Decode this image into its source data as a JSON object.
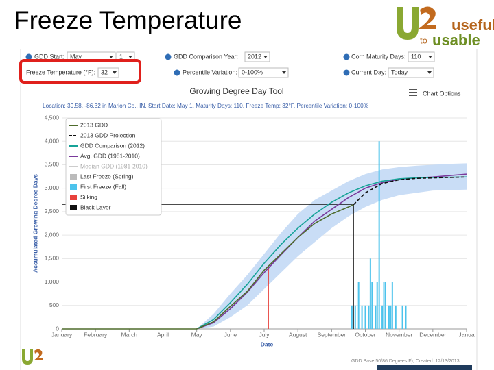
{
  "slide_title": "Freeze Temperature",
  "logo": {
    "word1": "useful",
    "word2": "to",
    "word3": "usable"
  },
  "controls": [
    {
      "label": "GDD Start:",
      "value": "May",
      "value2": "1"
    },
    {
      "label": "GDD Comparison Year:",
      "value": "2012"
    },
    {
      "label": "Corn Maturity Days:",
      "value": "110"
    },
    {
      "label": "Freeze Temperature (°F):",
      "value": "32"
    },
    {
      "label": "Percentile Variation:",
      "value": "0-100%"
    },
    {
      "label": "Current Day:",
      "value": "Today"
    }
  ],
  "chart_options": "Chart Options",
  "footer": "GDD Base 50/86 Degrees F), Created: 12/13/2013",
  "chart_data": {
    "type": "line",
    "title": "Growing Degree Day Tool",
    "subtitle": "Location: 39.58, -86.32 in Marion Co., IN, Start Date: May 1, Maturity Days: 110, Freeze Temp: 32°F, Percentile Variation: 0-100%",
    "y_label": "Accumulated Growing Degree Days",
    "x_label": "Date",
    "xlim": [
      0,
      12
    ],
    "xticks": [
      {
        "value": 0,
        "label": "January"
      },
      {
        "value": 1,
        "label": "February"
      },
      {
        "value": 2,
        "label": "March"
      },
      {
        "value": 3,
        "label": "April"
      },
      {
        "value": 4,
        "label": "May"
      },
      {
        "value": 5,
        "label": "June"
      },
      {
        "value": 6,
        "label": "July"
      },
      {
        "value": 7,
        "label": "August"
      },
      {
        "value": 8,
        "label": "September"
      },
      {
        "value": 9,
        "label": "October"
      },
      {
        "value": 10,
        "label": "November"
      },
      {
        "value": 11,
        "label": "December"
      },
      {
        "value": 12,
        "label": "Janua"
      }
    ],
    "ylim": [
      0,
      4500
    ],
    "yticks": [
      0,
      500,
      {
        "value": 1000,
        "label": "1,000"
      },
      {
        "value": 1500,
        "label": "1,500"
      },
      {
        "value": 2000,
        "label": "2,000"
      },
      {
        "value": 2500,
        "label": "2,500"
      },
      {
        "value": 3000,
        "label": "3,000"
      },
      {
        "value": 3500,
        "label": "3,500"
      },
      {
        "value": 4000,
        "label": "4,000"
      },
      {
        "value": 4500,
        "label": "4,500"
      }
    ],
    "grid": true,
    "percentile_band": {
      "color": "#c9ddf6",
      "x": [
        4,
        4.5,
        5,
        5.5,
        6,
        6.5,
        7,
        7.5,
        8,
        8.5,
        9,
        9.5,
        10,
        10.5,
        11,
        11.5,
        12
      ],
      "low": [
        0,
        50,
        250,
        500,
        850,
        1200,
        1550,
        1850,
        2150,
        2400,
        2600,
        2750,
        2850,
        2900,
        2950,
        2960,
        2970
      ],
      "high": [
        0,
        320,
        750,
        1150,
        1600,
        2050,
        2450,
        2750,
        2950,
        3150,
        3300,
        3400,
        3450,
        3480,
        3500,
        3520,
        3530
      ]
    },
    "series": [
      {
        "name": "2013 GDD",
        "color": "#4e6b2c",
        "kind": "line",
        "x": [
          0,
          4,
          4.5,
          5,
          5.5,
          6,
          6.5,
          7,
          7.5,
          8,
          8.5,
          8.65
        ],
        "values": [
          0,
          0,
          150,
          480,
          800,
          1250,
          1600,
          1950,
          2250,
          2450,
          2600,
          2650
        ]
      },
      {
        "name": "2013 GDD Projection",
        "color": "#111111",
        "kind": "dashed",
        "x": [
          8.65,
          9,
          9.5,
          10,
          10.5,
          11,
          11.5,
          12
        ],
        "values": [
          2650,
          2900,
          3100,
          3180,
          3210,
          3220,
          3230,
          3240
        ]
      },
      {
        "name": "GDD Comparison (2012)",
        "color": "#17a398",
        "kind": "line",
        "x": [
          4,
          4.5,
          5,
          5.5,
          6,
          6.5,
          7,
          7.5,
          8,
          8.5,
          9,
          9.5,
          10,
          10.5,
          11,
          12
        ],
        "values": [
          0,
          200,
          560,
          950,
          1400,
          1800,
          2150,
          2450,
          2700,
          2900,
          3050,
          3150,
          3200,
          3220,
          3230,
          3240
        ]
      },
      {
        "name": "Avg. GDD (1981-2010)",
        "color": "#7a3a9c",
        "kind": "line",
        "x": [
          4,
          4.5,
          5,
          5.5,
          6,
          6.5,
          7,
          7.5,
          8,
          8.5,
          9,
          9.5,
          10,
          10.5,
          11,
          12
        ],
        "values": [
          0,
          130,
          430,
          780,
          1200,
          1580,
          1950,
          2300,
          2550,
          2800,
          3000,
          3120,
          3190,
          3220,
          3240,
          3300
        ]
      },
      {
        "name": "Median GDD (1981-2010)",
        "color": "#cccccc",
        "kind": "line",
        "x": [],
        "values": []
      },
      {
        "name": "Last Freeze (Spring)",
        "color": "#bbbbbb",
        "kind": "bars",
        "x": [],
        "values": []
      },
      {
        "name": "First Freeze (Fall)",
        "color": "#4cc3ec",
        "kind": "bars",
        "x": [
          8.6,
          8.7,
          8.8,
          8.9,
          9.0,
          9.1,
          9.15,
          9.2,
          9.3,
          9.35,
          9.41,
          9.5,
          9.55,
          9.6,
          9.7,
          9.75,
          9.8,
          9.9,
          10.1,
          10.2
        ],
        "values": [
          500,
          500,
          1000,
          500,
          500,
          500,
          1500,
          1000,
          500,
          1000,
          4000,
          500,
          1000,
          1000,
          500,
          500,
          1000,
          500,
          500,
          500
        ]
      },
      {
        "name": "Silking",
        "color": "#e8413c",
        "kind": "marker",
        "x": [
          6.13
        ],
        "values": [
          1350
        ]
      },
      {
        "name": "Black Layer",
        "color": "#111111",
        "kind": "marker",
        "x": [
          8.65
        ],
        "values": [
          2650
        ]
      }
    ]
  }
}
